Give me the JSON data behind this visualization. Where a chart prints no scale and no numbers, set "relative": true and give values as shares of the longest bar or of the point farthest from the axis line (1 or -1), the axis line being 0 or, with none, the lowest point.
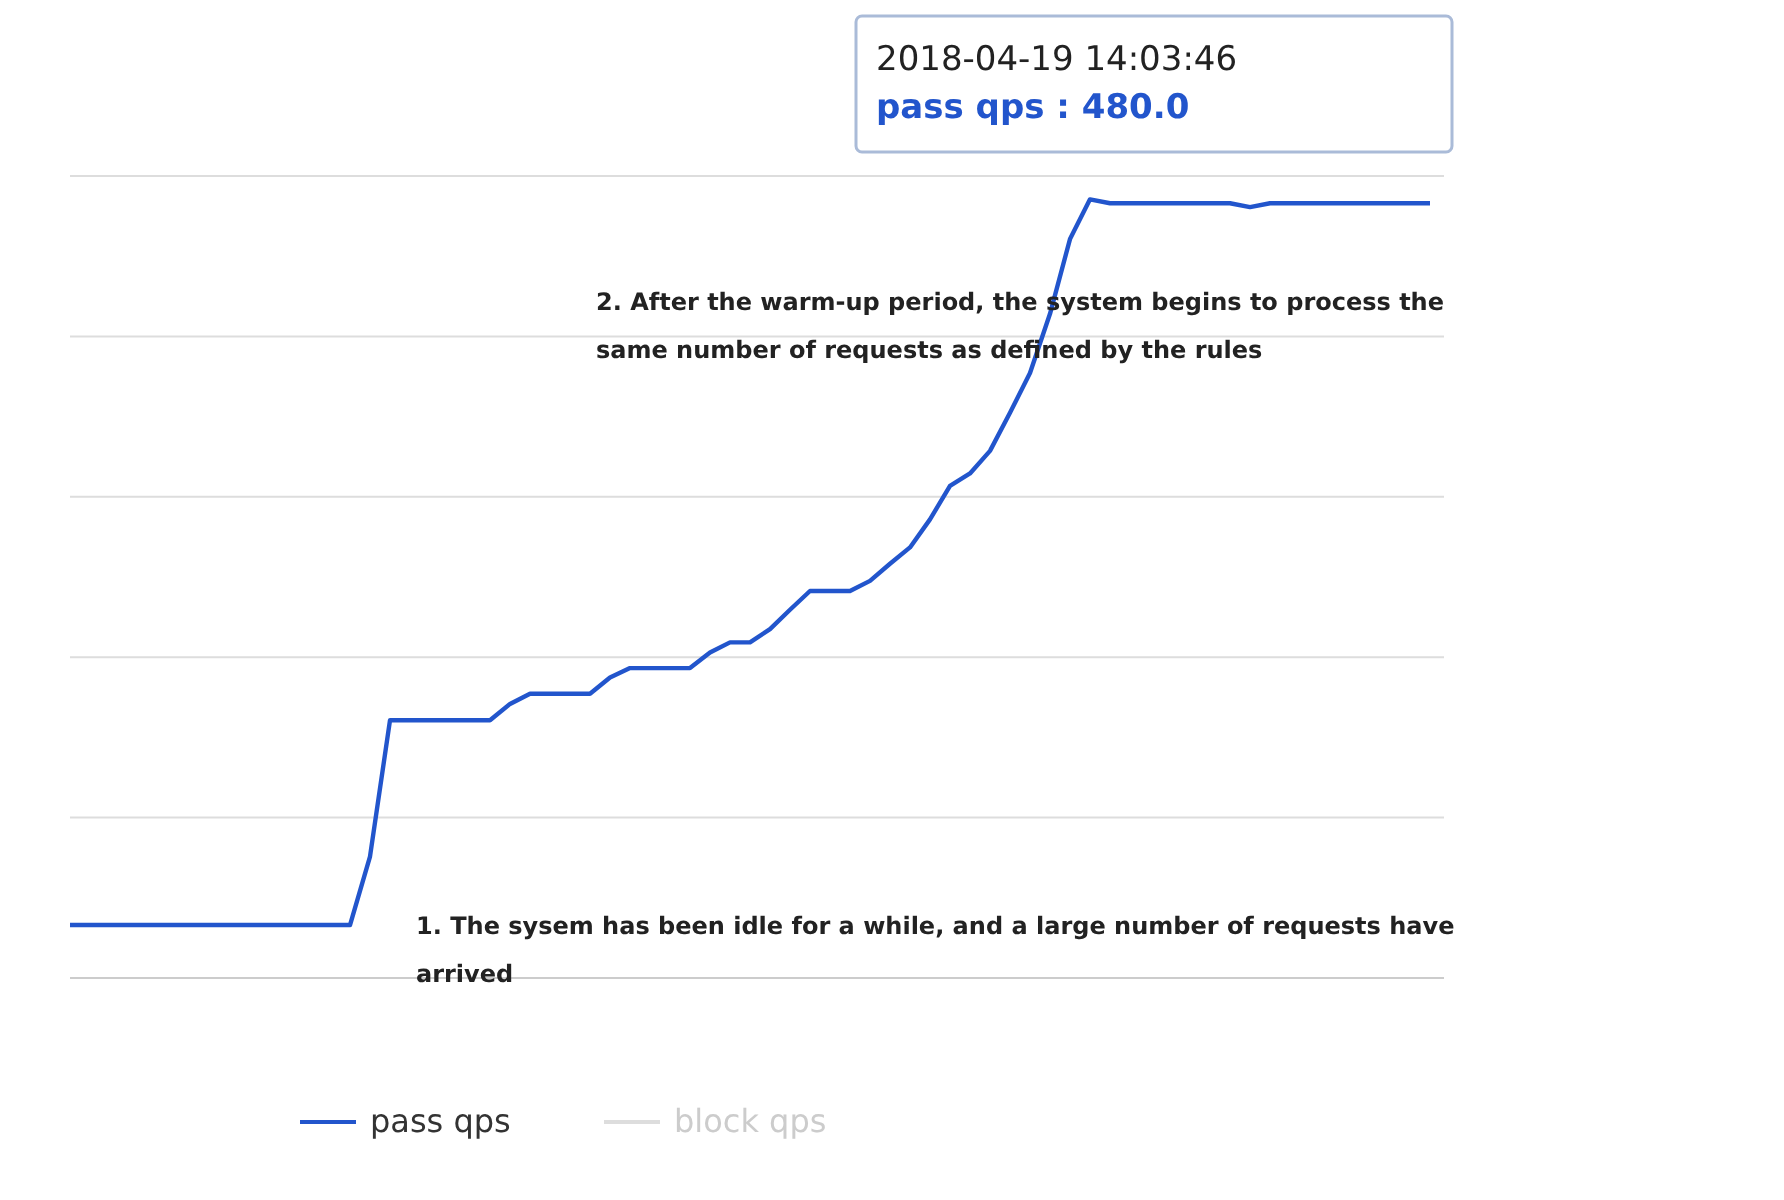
{
  "chart_data": {
    "type": "line",
    "relative": true,
    "grid": "y",
    "legend": "bottom",
    "categories": [
      null,
      null,
      null,
      null,
      null,
      null,
      null,
      null,
      null,
      null,
      null,
      null,
      null,
      null,
      null,
      null,
      null,
      null,
      null,
      null,
      null,
      null,
      null,
      null,
      null,
      null,
      null,
      null,
      null,
      null,
      null,
      null,
      null,
      null,
      null,
      null,
      null,
      null,
      null,
      null,
      null,
      null,
      null,
      null,
      null,
      null,
      null,
      null,
      null,
      null,
      null,
      null,
      null,
      null,
      null,
      null,
      null,
      null,
      null,
      null,
      null,
      null,
      null,
      null,
      null,
      null,
      null,
      null,
      null
    ],
    "series": [
      {
        "name": "pass qps",
        "color": "#2255cc",
        "values": [
          0.068,
          0.068,
          0.068,
          0.068,
          0.068,
          0.068,
          0.068,
          0.068,
          0.068,
          0.068,
          0.068,
          0.068,
          0.068,
          0.068,
          0.068,
          0.156,
          0.331,
          0.331,
          0.331,
          0.331,
          0.331,
          0.331,
          0.352,
          0.365,
          0.365,
          0.365,
          0.365,
          0.386,
          0.398,
          0.398,
          0.398,
          0.398,
          0.418,
          0.431,
          0.431,
          0.448,
          0.473,
          0.497,
          0.497,
          0.497,
          0.51,
          0.532,
          0.553,
          0.589,
          0.632,
          0.648,
          0.677,
          0.726,
          0.777,
          0.853,
          0.949,
          1.0,
          0.995,
          0.995,
          0.995,
          0.995,
          0.995,
          0.995,
          0.995,
          0.99,
          0.995,
          0.995,
          0.995,
          0.995,
          0.995,
          0.995,
          0.995,
          0.995,
          0.995
        ]
      },
      {
        "name": "block qps",
        "color": "#dddddd",
        "values": [
          null,
          null,
          null,
          null,
          null,
          null,
          null,
          null,
          null,
          null,
          null,
          null,
          null,
          null,
          null,
          null,
          null,
          null,
          null,
          null,
          null,
          null,
          null,
          null,
          null,
          null,
          null,
          null,
          null,
          null,
          null,
          null,
          null,
          null,
          null,
          null,
          null,
          null,
          null,
          null,
          null,
          null,
          null,
          null,
          null,
          null,
          null,
          null,
          null,
          null,
          null,
          null,
          null,
          null,
          null,
          null,
          null,
          null,
          null,
          null,
          null,
          null,
          null,
          null,
          null,
          null,
          null,
          null,
          null
        ]
      }
    ],
    "annotations": [
      "2018-04-19 14:03:46",
      "pass qps : 480.0",
      "2. After the warm-up period, the system begins to process the same number of requests as defined by the rules",
      "1. The sysem has been idle for a while, and a large number of requests have arrived"
    ]
  }
}
